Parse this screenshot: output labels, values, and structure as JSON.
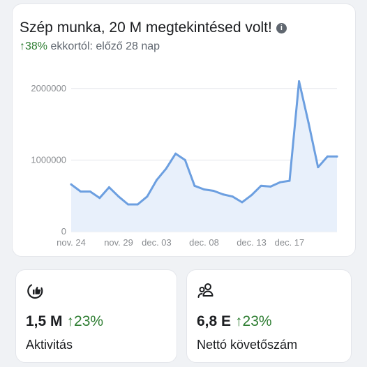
{
  "header": {
    "title": "Szép munka, 20 M megtekintésed volt!",
    "info_icon": "info-icon",
    "change_arrow": "↑",
    "change_percent": "38%",
    "comparison_text": "ekkortól: előző 28 nap"
  },
  "colors": {
    "line": "#6c9fe0",
    "fill": "#e8f0fb",
    "positive": "#2e7d32"
  },
  "chart_data": {
    "type": "area",
    "x_tick_labels": [
      "nov. 24",
      "nov. 29",
      "dec. 03",
      "dec. 08",
      "dec. 13",
      "dec. 17"
    ],
    "y_tick_labels": [
      "0",
      "1000000",
      "2000000"
    ],
    "ylim": [
      0,
      2300000
    ],
    "grid": true,
    "x": [
      "nov. 24",
      "nov. 25",
      "nov. 26",
      "nov. 27",
      "nov. 28",
      "nov. 29",
      "nov. 30",
      "dec. 01",
      "dec. 02",
      "dec. 03",
      "dec. 04",
      "dec. 05",
      "dec. 06",
      "dec. 07",
      "dec. 08",
      "dec. 09",
      "dec. 10",
      "dec. 11",
      "dec. 12",
      "dec. 13",
      "dec. 14",
      "dec. 15",
      "dec. 16",
      "dec. 17",
      "dec. 18",
      "dec. 19",
      "dec. 20",
      "dec. 21",
      "dec. 22"
    ],
    "values": [
      660000,
      560000,
      560000,
      470000,
      620000,
      490000,
      380000,
      380000,
      490000,
      720000,
      880000,
      1090000,
      1000000,
      640000,
      590000,
      570000,
      520000,
      490000,
      410000,
      510000,
      640000,
      630000,
      690000,
      710000,
      2100000,
      1520000,
      900000,
      1050000,
      1050000
    ]
  },
  "cards": [
    {
      "icon": "thumbs-up-icon",
      "value": "1,5 M",
      "arrow": "↑",
      "change": "23%",
      "label": "Aktivitás"
    },
    {
      "icon": "people-icon",
      "value": "6,8 E",
      "arrow": "↑",
      "change": "23%",
      "label": "Nettó követőszám"
    }
  ]
}
